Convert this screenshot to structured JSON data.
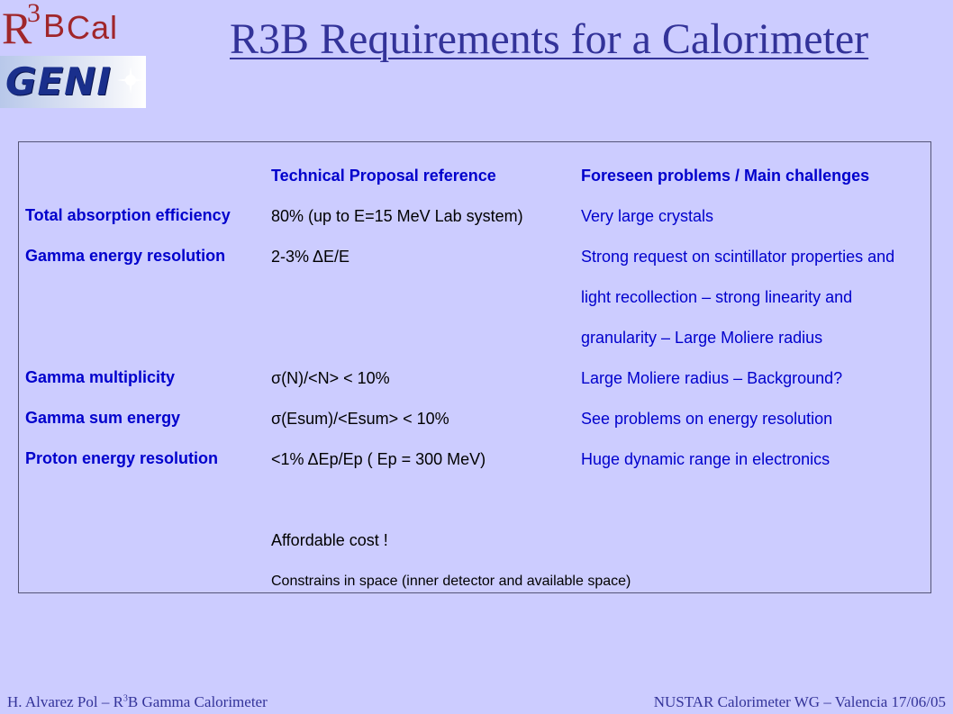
{
  "header": {
    "logo_r3bcal": {
      "r": "R",
      "three": "3",
      "b": "B",
      "cal": "Cal"
    },
    "logo_geni": "GENI",
    "title": "R3B Requirements for a Calorimeter"
  },
  "table": {
    "col_headers": [
      "Technical Proposal reference",
      "Foreseen problems  /  Main challenges"
    ],
    "rows": [
      {
        "label": "Total absorption efficiency",
        "reference": "80% (up to E=15 MeV Lab system)",
        "problems": [
          "Very large crystals"
        ]
      },
      {
        "label": "Gamma energy resolution",
        "reference": "2-3% ΔE/E",
        "problems": [
          "Strong request on scintillator properties and",
          "light recollection – strong linearity and",
          "granularity – Large Moliere radius"
        ]
      },
      {
        "label": "Gamma multiplicity",
        "reference": "σ(N)/<N> < 10%",
        "problems": [
          "Large Moliere radius – Background?"
        ]
      },
      {
        "label": "Gamma sum energy",
        "reference": "σ(Esum)/<Esum> < 10%",
        "problems": [
          "See problems on energy resolution"
        ]
      },
      {
        "label": "Proton energy resolution",
        "reference": "<1% ΔEp/Ep ( Ep = 300 MeV)",
        "problems": [
          "Huge dynamic range in  electronics"
        ]
      }
    ],
    "notes": [
      "Affordable cost !",
      "Constrains in space (inner detector and available space)"
    ]
  },
  "footer": {
    "left_prefix": "H. Alvarez Pol – R",
    "left_sup": "3",
    "left_suffix": "B Gamma Calorimeter",
    "right": "NUSTAR Calorimeter WG – Valencia 17/06/05"
  },
  "colors": {
    "background": "#ccccff",
    "title": "#333399",
    "text": "#0000cc",
    "logo_red": "#a0262a",
    "logo_blue": "#1a2f8c"
  }
}
